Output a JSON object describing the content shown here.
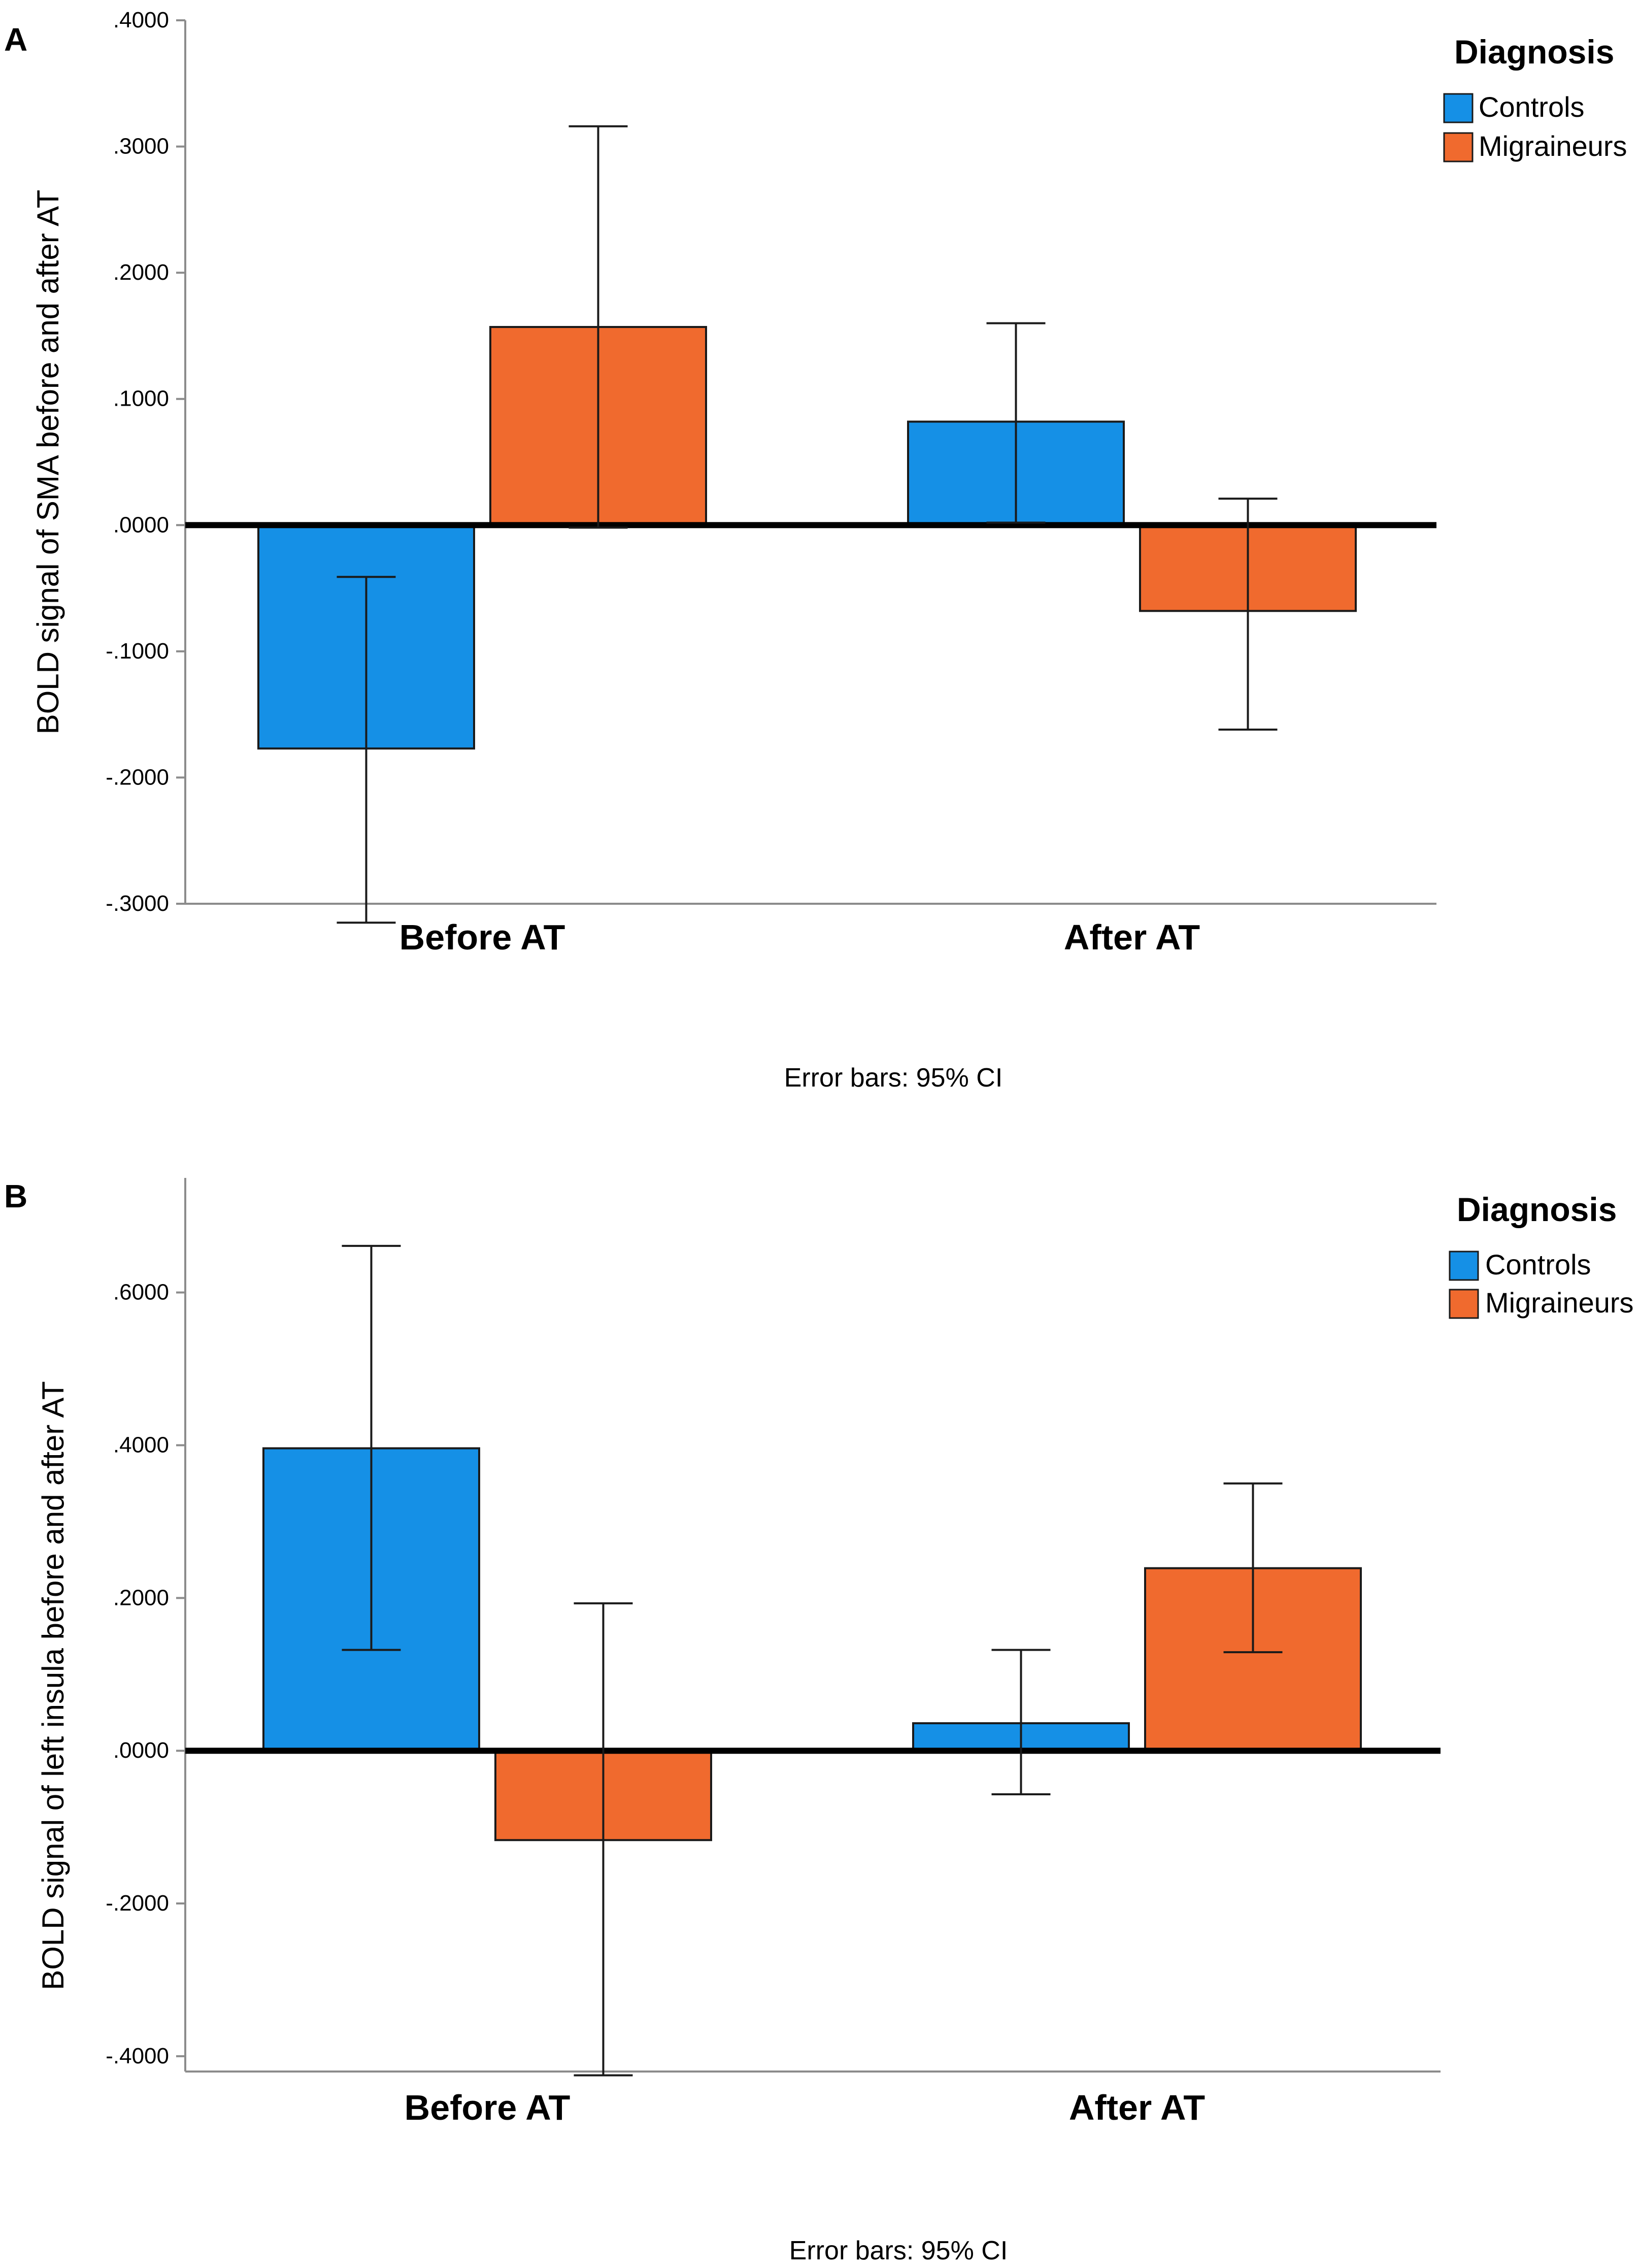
{
  "colors": {
    "controls": "#1590e6",
    "migraineurs": "#f06a2e",
    "axis": "#8c8c8c"
  },
  "chart_data": [
    {
      "panel": "A",
      "type": "bar",
      "ylabel": "BOLD signal of SMA before and after AT",
      "categories": [
        "Before AT",
        "After AT"
      ],
      "ylim": [
        -0.3,
        0.4
      ],
      "yticks": [
        0.4,
        0.3,
        0.2,
        0.1,
        0.0,
        -0.1,
        -0.2,
        -0.3
      ],
      "ytick_labels": [
        ".4000",
        ".3000",
        ".2000",
        ".1000",
        ".0000",
        "-.1000",
        "-.2000",
        "-.3000"
      ],
      "legend_title": "Diagnosis",
      "series": [
        {
          "name": "Controls",
          "color": "#1590e6",
          "values": [
            -0.177,
            0.082
          ],
          "ci_low": [
            -0.315,
            0.002
          ],
          "ci_high": [
            -0.041,
            0.16
          ]
        },
        {
          "name": "Migraineurs",
          "color": "#f06a2e",
          "values": [
            0.157,
            -0.068
          ],
          "ci_low": [
            -0.002,
            -0.162
          ],
          "ci_high": [
            0.316,
            0.021
          ]
        }
      ],
      "footnote": "Error bars: 95% CI"
    },
    {
      "panel": "B",
      "type": "bar",
      "ylabel": "BOLD signal of left insula before and after AT",
      "categories": [
        "Before AT",
        "After AT"
      ],
      "ylim": [
        -0.42,
        0.75
      ],
      "yticks": [
        0.6,
        0.4,
        0.2,
        0.0,
        -0.2,
        -0.4
      ],
      "ytick_labels": [
        ".6000",
        ".4000",
        ".2000",
        ".0000",
        "-.2000",
        "-.4000"
      ],
      "legend_title": "Diagnosis",
      "series": [
        {
          "name": "Controls",
          "color": "#1590e6",
          "values": [
            0.396,
            0.036
          ],
          "ci_low": [
            0.132,
            -0.057
          ],
          "ci_high": [
            0.661,
            0.132
          ]
        },
        {
          "name": "Migraineurs",
          "color": "#f06a2e",
          "values": [
            -0.117,
            0.239
          ],
          "ci_low": [
            -0.425,
            0.129
          ],
          "ci_high": [
            0.193,
            0.35
          ]
        }
      ],
      "footnote": "Error bars: 95% CI"
    }
  ]
}
